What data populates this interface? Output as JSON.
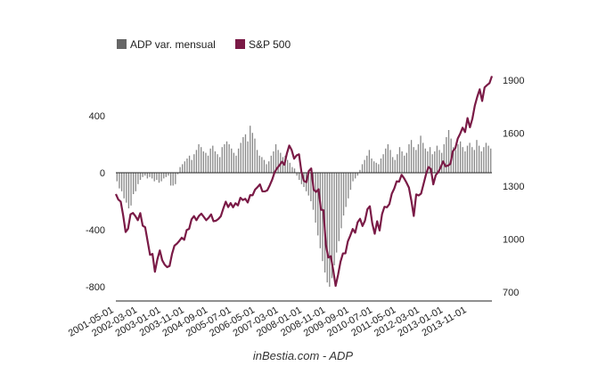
{
  "caption": "inBestia.com - ADP",
  "chart_data": {
    "type": "bar+line",
    "legend_position": "top-left",
    "grid": false,
    "legend": [
      {
        "name": "ADP var. mensual",
        "color": "#666666",
        "marker": "square"
      },
      {
        "name": "S&P 500",
        "color": "#7a1a46",
        "marker": "square"
      }
    ],
    "y_left": {
      "ticks": [
        "400",
        "0",
        "-400",
        "-800"
      ],
      "range": [
        -880,
        530
      ]
    },
    "y_right": {
      "ticks": [
        "1900",
        "1600",
        "1300",
        "1000",
        "700"
      ],
      "range": [
        630,
        1980
      ]
    },
    "x_ticks": [
      "2001-05-01",
      "2002-03-01",
      "2003-01-01",
      "2003-11-01",
      "2004-09-01",
      "2005-07-01",
      "2006-05-01",
      "2007-03-01",
      "2008-01-01",
      "2008-11-01",
      "2009-09-01",
      "2010-07-01",
      "2011-05-01",
      "2012-03-01",
      "2013-01-01",
      "2013-11-01"
    ],
    "x_range": [
      "2001-05-01",
      "2014-04-01"
    ],
    "series": [
      {
        "name": "ADP var. mensual",
        "type": "bar",
        "color": "#888888",
        "values": [
          -60,
          -110,
          -130,
          -180,
          -210,
          -250,
          -230,
          -150,
          -130,
          -80,
          -50,
          -30,
          -20,
          -40,
          -30,
          -40,
          -60,
          -50,
          -70,
          -60,
          -40,
          -30,
          -20,
          -90,
          -90,
          -80,
          -10,
          40,
          60,
          80,
          100,
          120,
          90,
          130,
          160,
          200,
          180,
          150,
          140,
          120,
          170,
          190,
          150,
          130,
          110,
          180,
          200,
          220,
          200,
          170,
          140,
          120,
          170,
          210,
          250,
          270,
          220,
          330,
          280,
          240,
          160,
          120,
          110,
          90,
          60,
          80,
          120,
          150,
          200,
          160,
          140,
          110,
          120,
          90,
          70,
          40,
          30,
          -20,
          -50,
          -80,
          -100,
          -130,
          -160,
          -200,
          -260,
          -350,
          -440,
          -530,
          -620,
          -700,
          -770,
          -800,
          -740,
          -650,
          -560,
          -480,
          -390,
          -300,
          -240,
          -180,
          -120,
          -60,
          -40,
          -20,
          20,
          60,
          90,
          120,
          160,
          100,
          80,
          70,
          60,
          100,
          130,
          170,
          200,
          160,
          110,
          90,
          130,
          180,
          150,
          120,
          140,
          200,
          230,
          180,
          160,
          200,
          260,
          210,
          170,
          150,
          180,
          130,
          150,
          190,
          160,
          140,
          200,
          250,
          300,
          240,
          180,
          160,
          200,
          220,
          180,
          150,
          190,
          210,
          180,
          160,
          230,
          190,
          150,
          180,
          210,
          190,
          170
        ]
      },
      {
        "name": "S&P 500",
        "type": "line",
        "color": "#7a1a46",
        "values": [
          1255,
          1224,
          1212,
          1134,
          1040,
          1059,
          1140,
          1148,
          1130,
          1107,
          1147,
          1076,
          1067,
          989,
          911,
          916,
          815,
          885,
          936,
          880,
          855,
          841,
          848,
          916,
          963,
          974,
          990,
          1008,
          996,
          1051,
          1058,
          1112,
          1130,
          1107,
          1131,
          1144,
          1126,
          1107,
          1121,
          1140,
          1101,
          1104,
          1114,
          1130,
          1173,
          1212,
          1181,
          1204,
          1180,
          1203,
          1191,
          1234,
          1221,
          1228,
          1207,
          1249,
          1248,
          1280,
          1294,
          1310,
          1270,
          1270,
          1276,
          1304,
          1336,
          1378,
          1401,
          1418,
          1438,
          1421,
          1483,
          1530,
          1504,
          1455,
          1474,
          1480,
          1380,
          1330,
          1322,
          1385,
          1400,
          1280,
          1267,
          1282,
          1166,
          1164,
          968,
          896,
          903,
          826,
          735,
          798,
          872,
          919,
          919,
          987,
          1020,
          1057,
          1036,
          1095,
          1115,
          1074,
          1104,
          1169,
          1186,
          1089,
          1030,
          1101,
          1049,
          1141,
          1183,
          1180,
          1198,
          1257,
          1286,
          1327,
          1325,
          1364,
          1345,
          1320,
          1292,
          1218,
          1131,
          1253,
          1247,
          1258,
          1312,
          1366,
          1408,
          1397,
          1310,
          1362,
          1379,
          1406,
          1440,
          1412,
          1416,
          1426,
          1498,
          1514,
          1569,
          1597,
          1631,
          1606,
          1685,
          1633,
          1682,
          1756,
          1806,
          1848,
          1782,
          1859,
          1872,
          1883,
          1923
        ]
      }
    ]
  }
}
